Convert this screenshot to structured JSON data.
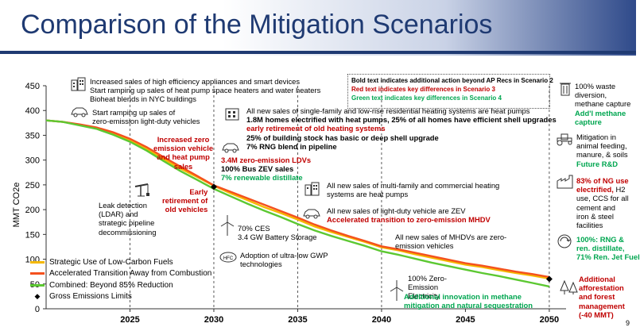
{
  "slide": {
    "title": "Comparison of the Mitigation Scenarios",
    "page_number": "9"
  },
  "chart_data": {
    "type": "line",
    "ylabel": "MMT CO2e",
    "ylim": [
      0,
      450
    ],
    "xlim": [
      2020,
      2051
    ],
    "y_ticks": [
      "0",
      "50",
      "100",
      "150",
      "200",
      "250",
      "300",
      "350",
      "400",
      "450"
    ],
    "x_ticks": [
      "2025",
      "2030",
      "2035",
      "2040",
      "2045",
      "2050"
    ],
    "series": [
      {
        "name": "Strategic Use of Low-Carbon Fuels",
        "color": "#f5b800",
        "x": [
          2020,
          2021,
          2022,
          2023,
          2024,
          2025,
          2026,
          2027,
          2028,
          2029,
          2030,
          2031,
          2032,
          2033,
          2034,
          2035,
          2036,
          2037,
          2038,
          2039,
          2040,
          2041,
          2042,
          2043,
          2044,
          2045,
          2046,
          2047,
          2048,
          2049,
          2050
        ],
        "y": [
          380,
          377,
          371,
          364,
          353,
          339,
          322,
          302,
          283,
          266,
          248,
          233,
          219,
          205,
          193,
          180,
          166,
          155,
          145,
          135,
          124,
          118,
          110,
          103,
          96,
          89,
          84,
          78,
          72,
          67,
          61
        ]
      },
      {
        "name": "Accelerated Transition Away from Combustion",
        "color": "#f4511e",
        "x": [
          2020,
          2021,
          2022,
          2023,
          2024,
          2025,
          2026,
          2027,
          2028,
          2029,
          2030,
          2031,
          2032,
          2033,
          2034,
          2035,
          2036,
          2037,
          2038,
          2039,
          2040,
          2041,
          2042,
          2043,
          2044,
          2045,
          2046,
          2047,
          2048,
          2049,
          2050
        ],
        "y": [
          380,
          377,
          372,
          366,
          356,
          343,
          326,
          306,
          287,
          268,
          249,
          236,
          223,
          210,
          197,
          184,
          170,
          158,
          147,
          137,
          126,
          120,
          113,
          106,
          99,
          92,
          87,
          81,
          75,
          70,
          64
        ]
      },
      {
        "name": "Combined: Beyond 85% Reduction",
        "color": "#5cc832",
        "x": [
          2020,
          2021,
          2022,
          2023,
          2024,
          2025,
          2026,
          2027,
          2028,
          2029,
          2030,
          2031,
          2032,
          2033,
          2034,
          2035,
          2036,
          2037,
          2038,
          2039,
          2040,
          2041,
          2042,
          2043,
          2044,
          2045,
          2046,
          2047,
          2048,
          2049,
          2050
        ],
        "y": [
          380,
          377,
          370,
          363,
          351,
          337,
          319,
          298,
          278,
          260,
          242,
          227,
          212,
          198,
          185,
          171,
          158,
          147,
          137,
          127,
          116,
          109,
          101,
          93,
          86,
          79,
          72,
          66,
          59,
          52,
          45
        ]
      }
    ],
    "markers": {
      "name": "Gross Emissions Limits",
      "points": [
        {
          "x": 2030,
          "y": 246
        },
        {
          "x": 2050,
          "y": 60
        }
      ]
    }
  },
  "scenario_key": {
    "bold": "Bold text indicates additional action beyond AP Recs in Scenario 2",
    "red": "Red text indicates key differences in Scenario 3",
    "green": "Green text indicates key differences in Scenario 4",
    "red_color": "#c00000",
    "green_color": "#00a650"
  },
  "annotations": {
    "a1": [
      "Increased sales of high efficiency appliances and smart devices",
      "Start ramping up sales of heat pump space heaters and water heaters",
      "Bioheat blends in NYC buildings"
    ],
    "a2": [
      "Start ramping up sales of",
      "zero-emission light-duty vehicles"
    ],
    "a3": [
      "Leak detection",
      "(LDAR) and",
      "strategic pipeline",
      "decommissioning"
    ],
    "a4_red": [
      "Increased zero",
      "emission vehicle",
      "and heat pump",
      "sales"
    ],
    "a5_red": [
      "Early",
      "retirement of",
      "old vehicles"
    ],
    "a6": [
      "All new sales of single-family and low-rise  residential heating systems are heat pumps"
    ],
    "a6_bold": [
      "1.8M homes electrified with heat pumps, 25% of all homes have efficient shell upgrades"
    ],
    "a6_red": [
      "early retirement of old heating systems"
    ],
    "a7_bold": [
      "25% of building stock has basic or deep shell upgrade",
      "7% RNG blend in pipeline"
    ],
    "a8_red": [
      "3.4M zero-emission LDVs"
    ],
    "a8_bold": [
      "100% Bus ZEV sales"
    ],
    "a8_green": [
      "7% renewable distillate"
    ],
    "a9": [
      "70% CES",
      "3.4 GW Battery Storage"
    ],
    "a10": [
      "Adoption of ultra-low GWP",
      "technologies"
    ],
    "a11": [
      "All new sales of multi-family and commercial heating",
      "systems are heat pumps"
    ],
    "a12": [
      "All new sales of light-duty vehicle are ZEV"
    ],
    "a12_red": [
      "Accelerated transition to zero-emission MHDV"
    ],
    "a13": [
      "All new sales of MHDVs are zero-",
      "emission vehicles"
    ],
    "a14": [
      "100% Zero-",
      "Emission",
      "Electricity"
    ],
    "a15_green": [
      "Additional innovation in methane",
      "mitigation and natural sequestration"
    ],
    "r1": [
      "100% waste",
      "diversion,",
      "methane capture"
    ],
    "r1_green": [
      "Add'l methane",
      "capture"
    ],
    "r2": [
      "Mitigation in",
      "animal feeding,",
      "manure, & soils"
    ],
    "r2_green": [
      "Future R&D"
    ],
    "r3_red": [
      "83% of NG use",
      "electrified,"
    ],
    "r3_tail": "H2",
    "r3": [
      "use, CCS for all",
      "cement and",
      "iron & steel",
      "facilities"
    ],
    "r4_green": [
      "100%: RNG &",
      "ren. distillate,",
      "71% Ren. Jet Fuel"
    ],
    "r5_red": [
      "Additional",
      "afforestation",
      "and forest",
      "management",
      "(-40 MMT)"
    ]
  },
  "icons": [
    "buildings-icon",
    "car-icon",
    "oil-pump-icon",
    "house-icon",
    "wind-turbine-icon",
    "hydrogen-fuel-cell-icon",
    "trash-can-icon",
    "tractor-icon",
    "factory-icon",
    "recycle-globe-icon",
    "trees-icon"
  ]
}
